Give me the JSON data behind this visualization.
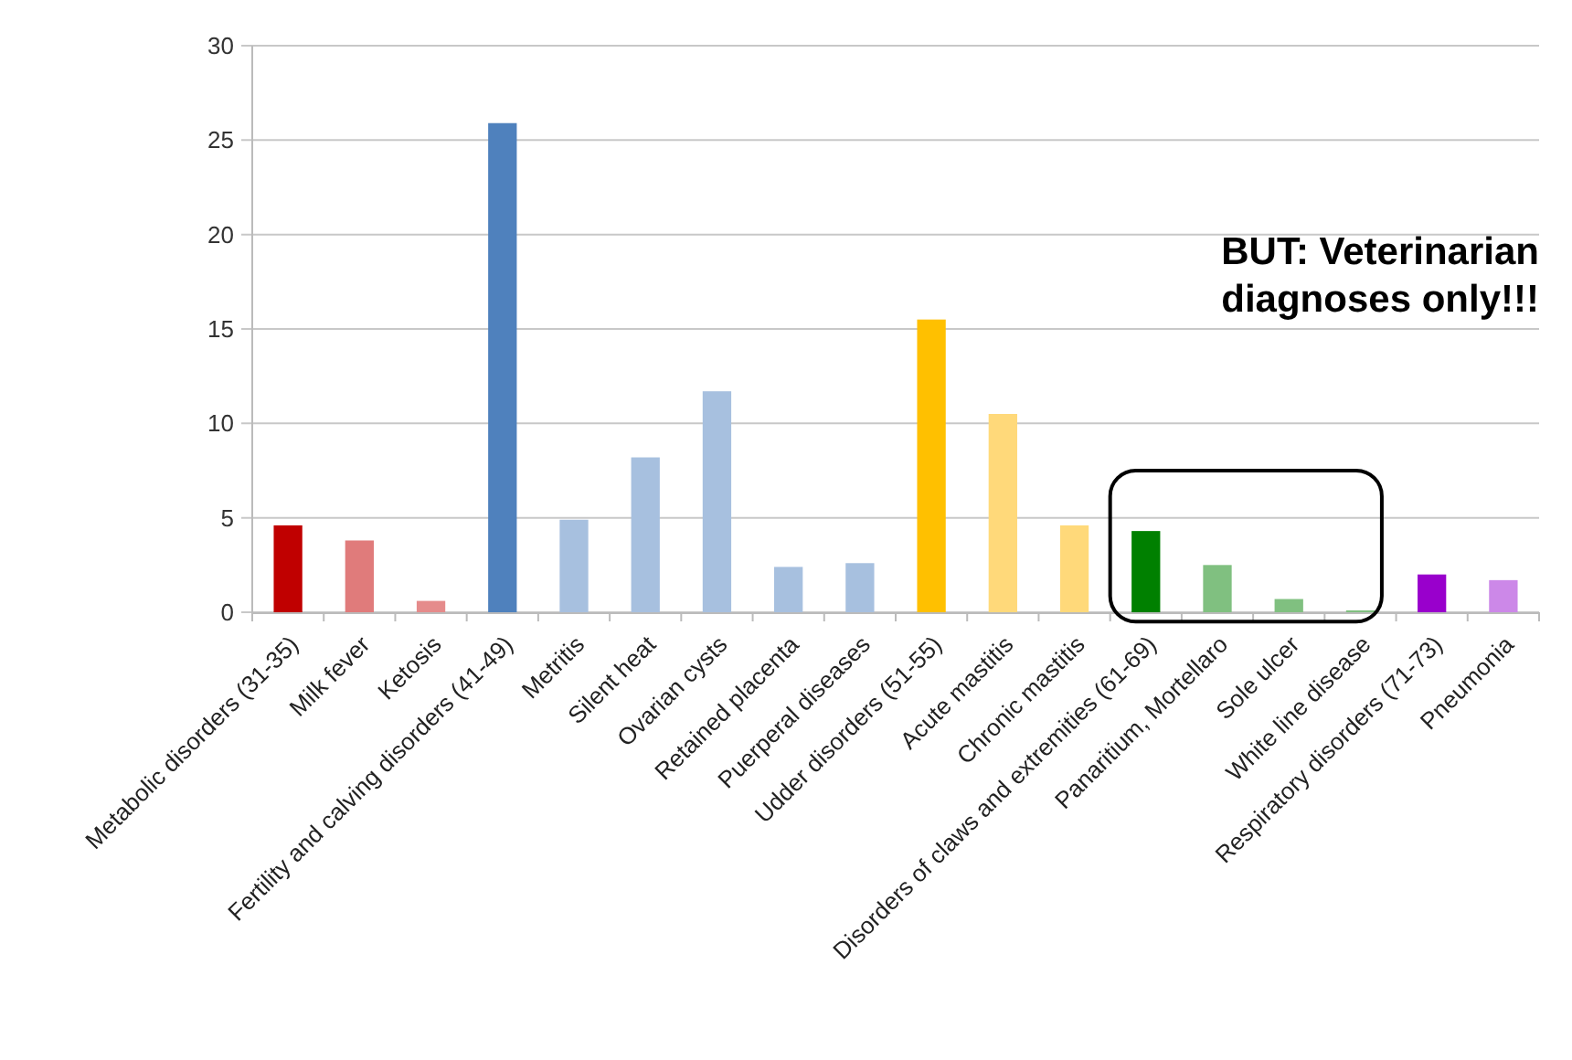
{
  "chart_data": {
    "type": "bar",
    "categories": [
      "Metabolic disorders (31-35)",
      "Milk fever",
      "Ketosis",
      "Fertility and calving disorders (41-49)",
      "Metritis",
      "Silent heat",
      "Ovarian cysts",
      "Retained placenta",
      "Puerperal diseases",
      "Udder disorders (51-55)",
      "Acute mastitis",
      "Chronic mastitis",
      "Disorders of claws and extremities (61-69)",
      "Panaritium, Mortellaro",
      "Sole ulcer",
      "White line disease",
      "Respiratory disorders (71-73)",
      "Pneumonia"
    ],
    "values": [
      4.6,
      3.8,
      0.6,
      25.9,
      4.9,
      8.2,
      11.7,
      2.4,
      2.6,
      15.5,
      10.5,
      4.6,
      4.3,
      2.5,
      0.7,
      0.1,
      2.0,
      1.7
    ],
    "colors": [
      "#c00000",
      "#e07b7b",
      "#e58b8b",
      "#4f81bd",
      "#a7c0df",
      "#a7c0df",
      "#a7c0df",
      "#a7c0df",
      "#a7c0df",
      "#ffc000",
      "#ffd97a",
      "#ffd97a",
      "#008000",
      "#80c080",
      "#80c080",
      "#80c080",
      "#9900cc",
      "#cc88e8"
    ],
    "ylim": [
      0,
      30
    ],
    "yticks": [
      0,
      5,
      10,
      15,
      20,
      25,
      30
    ],
    "grid": "y",
    "annotations": [
      "BUT: Veterinarian diagnoses only!!!"
    ]
  }
}
